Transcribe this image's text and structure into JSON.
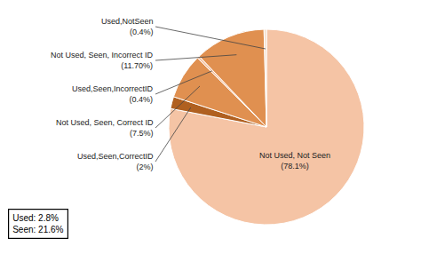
{
  "chart_data": {
    "type": "pie",
    "categories": [
      "Not Used, Not Seen\n(78.1%)",
      "Used,Seen,CorrectID\n(2%)",
      "Not Used, Seen, Correct ID\n(7.5%)",
      "Used,Seen,IncorrectID\n(0.4%)",
      "Not Used, Seen, Incorrect ID\n(11.70%)",
      "Used,NotSeen\n(0.4%)"
    ],
    "values": [
      78.1,
      2.0,
      7.5,
      0.4,
      11.7,
      0.4
    ],
    "colors": [
      "#F5C4A5",
      "#B06020",
      "#E09050",
      "#F5C4A5",
      "#E09050",
      "#F5DCC8"
    ],
    "annotations": [
      "Used: 2.8%\nSeen: 21.6%"
    ]
  }
}
